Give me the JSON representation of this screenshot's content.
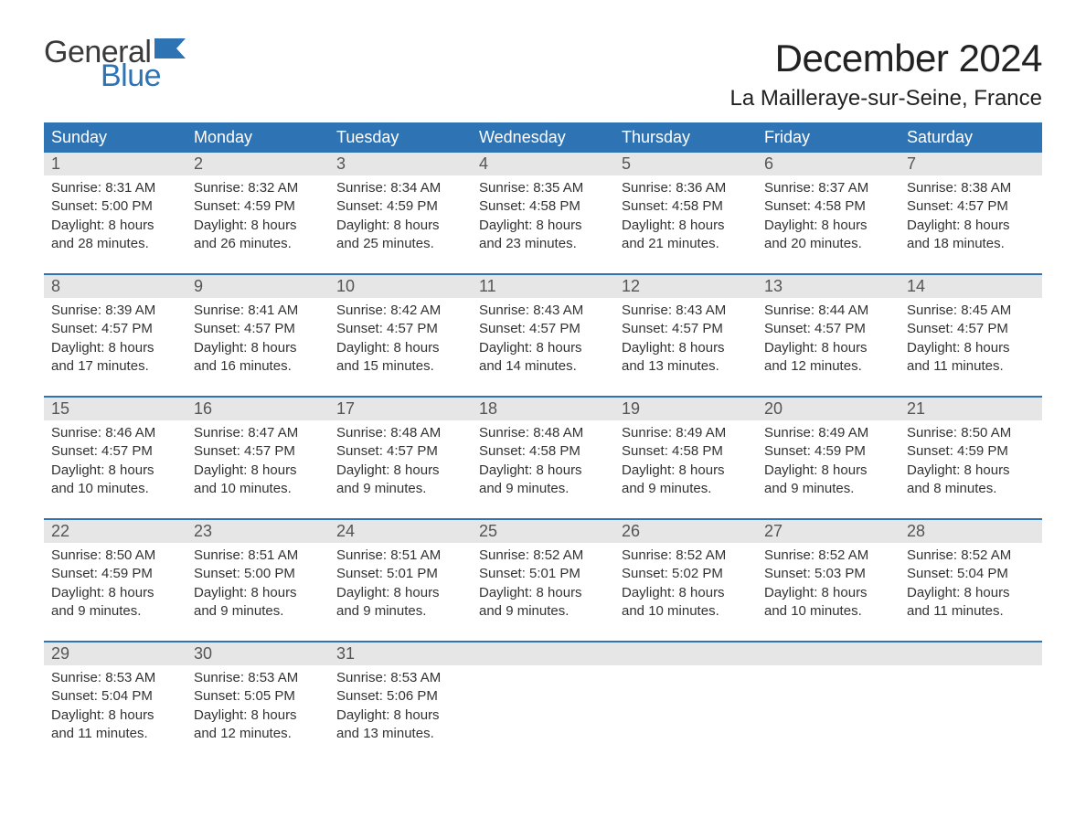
{
  "brand": {
    "word1": "General",
    "word2": "Blue",
    "flag_color": "#2e74b5"
  },
  "title": "December 2024",
  "location": "La Mailleraye-sur-Seine, France",
  "colors": {
    "header_bg": "#2e74b5",
    "header_text": "#ffffff",
    "daynum_bg": "#e6e6e6",
    "rule": "#2e74b5",
    "body_text": "#333333"
  },
  "calendar": {
    "type": "table",
    "days_of_week": [
      "Sunday",
      "Monday",
      "Tuesday",
      "Wednesday",
      "Thursday",
      "Friday",
      "Saturday"
    ],
    "weeks": [
      [
        {
          "n": "1",
          "sunrise": "Sunrise: 8:31 AM",
          "sunset": "Sunset: 5:00 PM",
          "d1": "Daylight: 8 hours",
          "d2": "and 28 minutes."
        },
        {
          "n": "2",
          "sunrise": "Sunrise: 8:32 AM",
          "sunset": "Sunset: 4:59 PM",
          "d1": "Daylight: 8 hours",
          "d2": "and 26 minutes."
        },
        {
          "n": "3",
          "sunrise": "Sunrise: 8:34 AM",
          "sunset": "Sunset: 4:59 PM",
          "d1": "Daylight: 8 hours",
          "d2": "and 25 minutes."
        },
        {
          "n": "4",
          "sunrise": "Sunrise: 8:35 AM",
          "sunset": "Sunset: 4:58 PM",
          "d1": "Daylight: 8 hours",
          "d2": "and 23 minutes."
        },
        {
          "n": "5",
          "sunrise": "Sunrise: 8:36 AM",
          "sunset": "Sunset: 4:58 PM",
          "d1": "Daylight: 8 hours",
          "d2": "and 21 minutes."
        },
        {
          "n": "6",
          "sunrise": "Sunrise: 8:37 AM",
          "sunset": "Sunset: 4:58 PM",
          "d1": "Daylight: 8 hours",
          "d2": "and 20 minutes."
        },
        {
          "n": "7",
          "sunrise": "Sunrise: 8:38 AM",
          "sunset": "Sunset: 4:57 PM",
          "d1": "Daylight: 8 hours",
          "d2": "and 18 minutes."
        }
      ],
      [
        {
          "n": "8",
          "sunrise": "Sunrise: 8:39 AM",
          "sunset": "Sunset: 4:57 PM",
          "d1": "Daylight: 8 hours",
          "d2": "and 17 minutes."
        },
        {
          "n": "9",
          "sunrise": "Sunrise: 8:41 AM",
          "sunset": "Sunset: 4:57 PM",
          "d1": "Daylight: 8 hours",
          "d2": "and 16 minutes."
        },
        {
          "n": "10",
          "sunrise": "Sunrise: 8:42 AM",
          "sunset": "Sunset: 4:57 PM",
          "d1": "Daylight: 8 hours",
          "d2": "and 15 minutes."
        },
        {
          "n": "11",
          "sunrise": "Sunrise: 8:43 AM",
          "sunset": "Sunset: 4:57 PM",
          "d1": "Daylight: 8 hours",
          "d2": "and 14 minutes."
        },
        {
          "n": "12",
          "sunrise": "Sunrise: 8:43 AM",
          "sunset": "Sunset: 4:57 PM",
          "d1": "Daylight: 8 hours",
          "d2": "and 13 minutes."
        },
        {
          "n": "13",
          "sunrise": "Sunrise: 8:44 AM",
          "sunset": "Sunset: 4:57 PM",
          "d1": "Daylight: 8 hours",
          "d2": "and 12 minutes."
        },
        {
          "n": "14",
          "sunrise": "Sunrise: 8:45 AM",
          "sunset": "Sunset: 4:57 PM",
          "d1": "Daylight: 8 hours",
          "d2": "and 11 minutes."
        }
      ],
      [
        {
          "n": "15",
          "sunrise": "Sunrise: 8:46 AM",
          "sunset": "Sunset: 4:57 PM",
          "d1": "Daylight: 8 hours",
          "d2": "and 10 minutes."
        },
        {
          "n": "16",
          "sunrise": "Sunrise: 8:47 AM",
          "sunset": "Sunset: 4:57 PM",
          "d1": "Daylight: 8 hours",
          "d2": "and 10 minutes."
        },
        {
          "n": "17",
          "sunrise": "Sunrise: 8:48 AM",
          "sunset": "Sunset: 4:57 PM",
          "d1": "Daylight: 8 hours",
          "d2": "and 9 minutes."
        },
        {
          "n": "18",
          "sunrise": "Sunrise: 8:48 AM",
          "sunset": "Sunset: 4:58 PM",
          "d1": "Daylight: 8 hours",
          "d2": "and 9 minutes."
        },
        {
          "n": "19",
          "sunrise": "Sunrise: 8:49 AM",
          "sunset": "Sunset: 4:58 PM",
          "d1": "Daylight: 8 hours",
          "d2": "and 9 minutes."
        },
        {
          "n": "20",
          "sunrise": "Sunrise: 8:49 AM",
          "sunset": "Sunset: 4:59 PM",
          "d1": "Daylight: 8 hours",
          "d2": "and 9 minutes."
        },
        {
          "n": "21",
          "sunrise": "Sunrise: 8:50 AM",
          "sunset": "Sunset: 4:59 PM",
          "d1": "Daylight: 8 hours",
          "d2": "and 8 minutes."
        }
      ],
      [
        {
          "n": "22",
          "sunrise": "Sunrise: 8:50 AM",
          "sunset": "Sunset: 4:59 PM",
          "d1": "Daylight: 8 hours",
          "d2": "and 9 minutes."
        },
        {
          "n": "23",
          "sunrise": "Sunrise: 8:51 AM",
          "sunset": "Sunset: 5:00 PM",
          "d1": "Daylight: 8 hours",
          "d2": "and 9 minutes."
        },
        {
          "n": "24",
          "sunrise": "Sunrise: 8:51 AM",
          "sunset": "Sunset: 5:01 PM",
          "d1": "Daylight: 8 hours",
          "d2": "and 9 minutes."
        },
        {
          "n": "25",
          "sunrise": "Sunrise: 8:52 AM",
          "sunset": "Sunset: 5:01 PM",
          "d1": "Daylight: 8 hours",
          "d2": "and 9 minutes."
        },
        {
          "n": "26",
          "sunrise": "Sunrise: 8:52 AM",
          "sunset": "Sunset: 5:02 PM",
          "d1": "Daylight: 8 hours",
          "d2": "and 10 minutes."
        },
        {
          "n": "27",
          "sunrise": "Sunrise: 8:52 AM",
          "sunset": "Sunset: 5:03 PM",
          "d1": "Daylight: 8 hours",
          "d2": "and 10 minutes."
        },
        {
          "n": "28",
          "sunrise": "Sunrise: 8:52 AM",
          "sunset": "Sunset: 5:04 PM",
          "d1": "Daylight: 8 hours",
          "d2": "and 11 minutes."
        }
      ],
      [
        {
          "n": "29",
          "sunrise": "Sunrise: 8:53 AM",
          "sunset": "Sunset: 5:04 PM",
          "d1": "Daylight: 8 hours",
          "d2": "and 11 minutes."
        },
        {
          "n": "30",
          "sunrise": "Sunrise: 8:53 AM",
          "sunset": "Sunset: 5:05 PM",
          "d1": "Daylight: 8 hours",
          "d2": "and 12 minutes."
        },
        {
          "n": "31",
          "sunrise": "Sunrise: 8:53 AM",
          "sunset": "Sunset: 5:06 PM",
          "d1": "Daylight: 8 hours",
          "d2": "and 13 minutes."
        },
        {
          "n": "",
          "sunrise": "",
          "sunset": "",
          "d1": "",
          "d2": ""
        },
        {
          "n": "",
          "sunrise": "",
          "sunset": "",
          "d1": "",
          "d2": ""
        },
        {
          "n": "",
          "sunrise": "",
          "sunset": "",
          "d1": "",
          "d2": ""
        },
        {
          "n": "",
          "sunrise": "",
          "sunset": "",
          "d1": "",
          "d2": ""
        }
      ]
    ]
  }
}
